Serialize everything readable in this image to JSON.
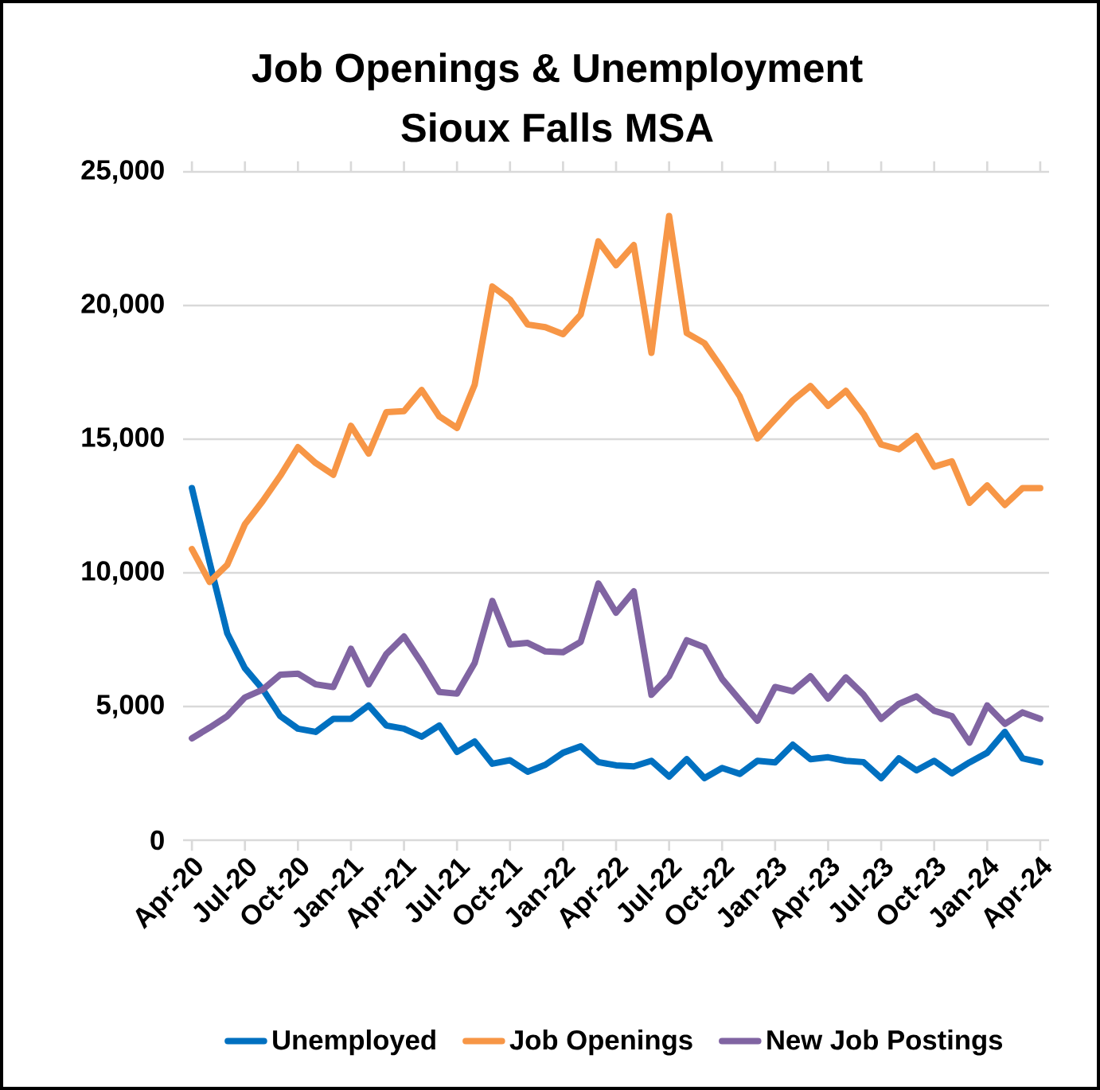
{
  "chart_data": {
    "type": "line",
    "title": "Job Openings & Unemployment",
    "subtitle": "Sioux Falls MSA",
    "categories": [
      "Apr-20",
      null,
      null,
      "Jul-20",
      null,
      null,
      "Oct-20",
      null,
      null,
      "Jan-21",
      null,
      null,
      "Apr-21",
      null,
      null,
      "Jul-21",
      null,
      null,
      "Oct-21",
      null,
      null,
      "Jan-22",
      null,
      null,
      "Apr-22",
      null,
      null,
      "Jul-22",
      null,
      null,
      "Oct-22",
      null,
      null,
      "Jan-23",
      null,
      null,
      "Apr-23",
      null,
      null,
      "Jul-23",
      null,
      null,
      "Oct-23",
      null,
      null,
      "Jan-24",
      null,
      null,
      "Apr-24"
    ],
    "series": [
      {
        "name": "Unemployed",
        "color": "#0070c0",
        "values": [
          13170,
          10400,
          7740,
          6430,
          5650,
          4640,
          4170,
          4050,
          4540,
          4540,
          5040,
          4290,
          4170,
          3870,
          4290,
          3300,
          3690,
          2860,
          2990,
          2560,
          2820,
          3270,
          3510,
          2920,
          2800,
          2760,
          2970,
          2380,
          3030,
          2320,
          2700,
          2480,
          2970,
          2910,
          3570,
          3030,
          3100,
          2970,
          2920,
          2320,
          3060,
          2610,
          2970,
          2500,
          2910,
          3270,
          4050,
          3060,
          2910
        ]
      },
      {
        "name": "Job Openings",
        "color": "#f79646",
        "values": [
          10890,
          9660,
          10300,
          11820,
          12680,
          13630,
          14700,
          14110,
          13670,
          15500,
          14460,
          16010,
          16050,
          16840,
          15850,
          15420,
          17040,
          20710,
          20220,
          19290,
          19190,
          18930,
          19660,
          22400,
          21510,
          22260,
          18230,
          23350,
          18970,
          18590,
          17640,
          16600,
          15030,
          15750,
          16450,
          16990,
          16250,
          16810,
          15950,
          14800,
          14620,
          15120,
          13970,
          14170,
          12620,
          13270,
          12540,
          13170,
          13170
        ]
      },
      {
        "name": "New Job Postings",
        "color": "#8064a2",
        "values": [
          3810,
          4210,
          4640,
          5340,
          5630,
          6190,
          6230,
          5830,
          5730,
          7160,
          5830,
          6960,
          7620,
          6630,
          5540,
          5480,
          6630,
          8950,
          7320,
          7380,
          7060,
          7030,
          7420,
          9600,
          8510,
          9310,
          5440,
          6130,
          7480,
          7220,
          6030,
          5240,
          4470,
          5730,
          5570,
          6130,
          5300,
          6090,
          5440,
          4540,
          5100,
          5380,
          4840,
          4640,
          3650,
          5040,
          4350,
          4780,
          4540
        ]
      }
    ],
    "ylim": [
      0,
      25000
    ],
    "yticks": [
      0,
      {
        "value": 5000,
        "label": "5,000"
      },
      {
        "value": 10000,
        "label": "10,000"
      },
      {
        "value": 15000,
        "label": "15,000"
      },
      {
        "value": 20000,
        "label": "20,000"
      },
      {
        "value": 25000,
        "label": "25,000"
      }
    ],
    "grid": "y",
    "legend": "bottom"
  }
}
